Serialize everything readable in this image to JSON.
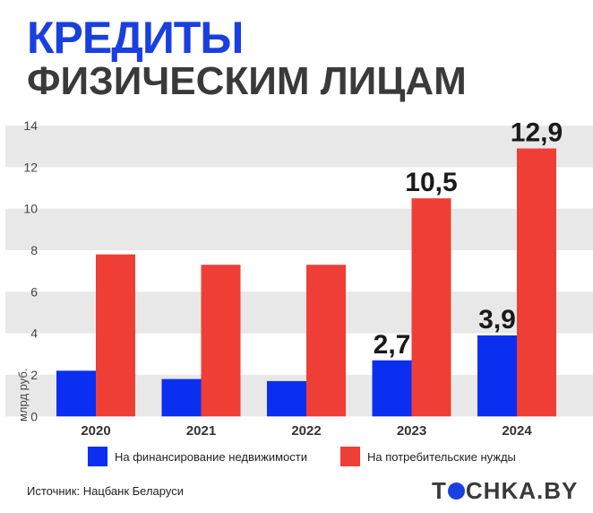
{
  "title_line1": "КРЕДИТЫ",
  "title_line2": "ФИЗИЧЕСКИМ ЛИЦАМ",
  "source": "Источник: Нацбанк Беларуси",
  "logo": "TOCHKA.BY",
  "chart_data": {
    "type": "bar",
    "categories": [
      "2020",
      "2021",
      "2022",
      "2023",
      "2024"
    ],
    "ylabel": "млрд руб.",
    "ylim": [
      0,
      14
    ],
    "yticks": [
      0,
      2,
      4,
      6,
      8,
      10,
      12,
      14
    ],
    "grid": "alternating horizontal bands",
    "legend_placement": "bottom",
    "series": [
      {
        "name": "На финансирование недвижимости",
        "color": "#0a2ff0",
        "values": [
          2.2,
          1.8,
          1.7,
          2.7,
          3.9
        ],
        "labels": [
          null,
          null,
          null,
          "2,7",
          "3,9"
        ]
      },
      {
        "name": "На потребительские нужды",
        "color": "#ef3e36",
        "values": [
          7.8,
          7.3,
          7.3,
          10.5,
          12.9
        ],
        "labels": [
          null,
          null,
          null,
          "10,5",
          "12,9"
        ]
      }
    ]
  }
}
